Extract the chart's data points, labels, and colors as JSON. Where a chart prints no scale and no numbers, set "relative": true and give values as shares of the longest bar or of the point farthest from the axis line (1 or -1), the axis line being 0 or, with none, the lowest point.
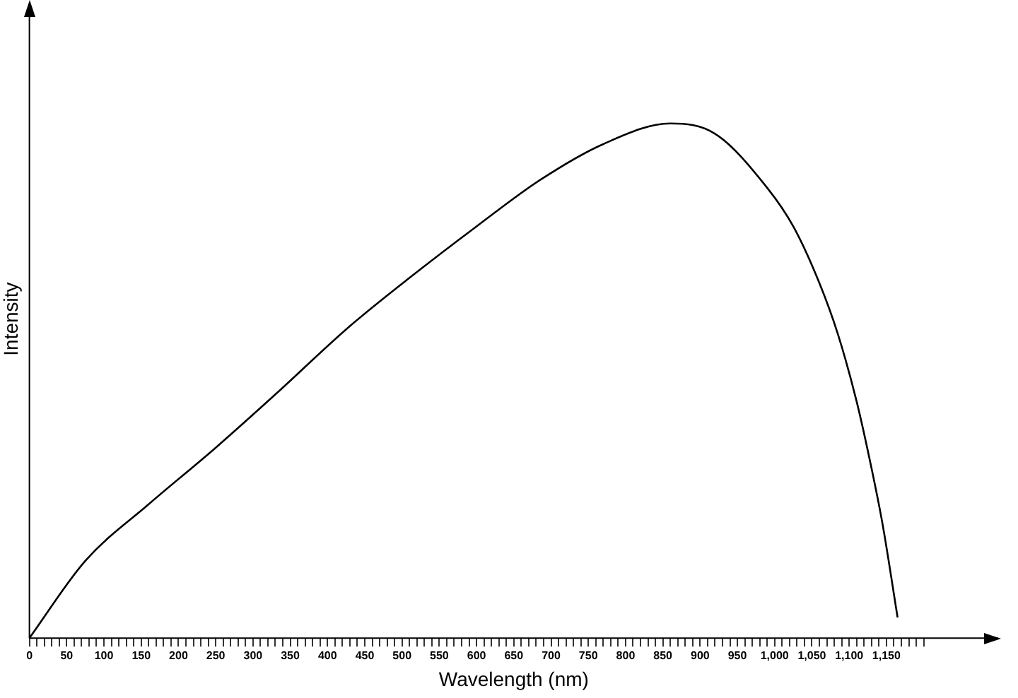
{
  "chart_data": {
    "type": "line",
    "xlabel": "Wavelength (nm)",
    "ylabel": "Intensity",
    "relative": true,
    "color": "#000000",
    "marker": "none",
    "grid": false,
    "legend": false,
    "x": [
      0,
      75,
      160,
      250,
      335,
      425,
      510,
      600,
      685,
      770,
      860,
      920,
      990,
      1025,
      1060,
      1085,
      1110,
      1130,
      1145,
      1165
    ],
    "values": [
      0,
      0.15,
      0.26,
      0.37,
      0.48,
      0.6,
      0.7,
      0.8,
      0.89,
      0.96,
      1,
      0.98,
      0.875,
      0.8,
      0.69,
      0.59,
      0.46,
      0.33,
      0.22,
      0.04
    ],
    "xlim": [
      0,
      1300
    ],
    "xticks": [
      0,
      {
        "value": 10,
        "label": null
      },
      {
        "value": 20,
        "label": null
      },
      {
        "value": 30,
        "label": null
      },
      {
        "value": 40,
        "label": null
      },
      50,
      {
        "value": 60,
        "label": null
      },
      {
        "value": 70,
        "label": null
      },
      {
        "value": 80,
        "label": null
      },
      {
        "value": 90,
        "label": null
      },
      100,
      {
        "value": 110,
        "label": null
      },
      {
        "value": 120,
        "label": null
      },
      {
        "value": 130,
        "label": null
      },
      {
        "value": 140,
        "label": null
      },
      150,
      {
        "value": 160,
        "label": null
      },
      {
        "value": 170,
        "label": null
      },
      {
        "value": 180,
        "label": null
      },
      {
        "value": 190,
        "label": null
      },
      200,
      {
        "value": 210,
        "label": null
      },
      {
        "value": 220,
        "label": null
      },
      {
        "value": 230,
        "label": null
      },
      {
        "value": 240,
        "label": null
      },
      250,
      {
        "value": 260,
        "label": null
      },
      {
        "value": 270,
        "label": null
      },
      {
        "value": 280,
        "label": null
      },
      {
        "value": 290,
        "label": null
      },
      300,
      {
        "value": 310,
        "label": null
      },
      {
        "value": 320,
        "label": null
      },
      {
        "value": 330,
        "label": null
      },
      {
        "value": 340,
        "label": null
      },
      350,
      {
        "value": 360,
        "label": null
      },
      {
        "value": 370,
        "label": null
      },
      {
        "value": 380,
        "label": null
      },
      {
        "value": 390,
        "label": null
      },
      400,
      {
        "value": 410,
        "label": null
      },
      {
        "value": 420,
        "label": null
      },
      {
        "value": 430,
        "label": null
      },
      {
        "value": 440,
        "label": null
      },
      450,
      {
        "value": 460,
        "label": null
      },
      {
        "value": 470,
        "label": null
      },
      {
        "value": 480,
        "label": null
      },
      {
        "value": 490,
        "label": null
      },
      500,
      {
        "value": 510,
        "label": null
      },
      {
        "value": 520,
        "label": null
      },
      {
        "value": 530,
        "label": null
      },
      {
        "value": 540,
        "label": null
      },
      550,
      {
        "value": 560,
        "label": null
      },
      {
        "value": 570,
        "label": null
      },
      {
        "value": 580,
        "label": null
      },
      {
        "value": 590,
        "label": null
      },
      600,
      {
        "value": 610,
        "label": null
      },
      {
        "value": 620,
        "label": null
      },
      {
        "value": 630,
        "label": null
      },
      {
        "value": 640,
        "label": null
      },
      650,
      {
        "value": 660,
        "label": null
      },
      {
        "value": 670,
        "label": null
      },
      {
        "value": 680,
        "label": null
      },
      {
        "value": 690,
        "label": null
      },
      700,
      {
        "value": 710,
        "label": null
      },
      {
        "value": 720,
        "label": null
      },
      {
        "value": 730,
        "label": null
      },
      {
        "value": 740,
        "label": null
      },
      750,
      {
        "value": 760,
        "label": null
      },
      {
        "value": 770,
        "label": null
      },
      {
        "value": 780,
        "label": null
      },
      {
        "value": 790,
        "label": null
      },
      800,
      {
        "value": 810,
        "label": null
      },
      {
        "value": 820,
        "label": null
      },
      {
        "value": 830,
        "label": null
      },
      {
        "value": 840,
        "label": null
      },
      850,
      {
        "value": 860,
        "label": null
      },
      {
        "value": 870,
        "label": null
      },
      {
        "value": 880,
        "label": null
      },
      {
        "value": 890,
        "label": null
      },
      900,
      {
        "value": 910,
        "label": null
      },
      {
        "value": 920,
        "label": null
      },
      {
        "value": 930,
        "label": null
      },
      {
        "value": 940,
        "label": null
      },
      950,
      {
        "value": 960,
        "label": null
      },
      {
        "value": 970,
        "label": null
      },
      {
        "value": 980,
        "label": null
      },
      {
        "value": 990,
        "label": null
      },
      {
        "value": 1000,
        "label": "1,000"
      },
      {
        "value": 1010,
        "label": null
      },
      {
        "value": 1020,
        "label": null
      },
      {
        "value": 1030,
        "label": null
      },
      {
        "value": 1040,
        "label": null
      },
      {
        "value": 1050,
        "label": "1,050"
      },
      {
        "value": 1060,
        "label": null
      },
      {
        "value": 1070,
        "label": null
      },
      {
        "value": 1080,
        "label": null
      },
      {
        "value": 1090,
        "label": null
      },
      {
        "value": 1100,
        "label": "1,100"
      },
      {
        "value": 1110,
        "label": null
      },
      {
        "value": 1120,
        "label": null
      },
      {
        "value": 1130,
        "label": null
      },
      {
        "value": 1140,
        "label": null
      },
      {
        "value": 1150,
        "label": "1,150"
      },
      {
        "value": 1160,
        "label": null
      },
      {
        "value": 1170,
        "label": null
      },
      {
        "value": 1180,
        "label": null
      },
      {
        "value": 1190,
        "label": null
      },
      {
        "value": 1200,
        "label": null
      }
    ]
  }
}
